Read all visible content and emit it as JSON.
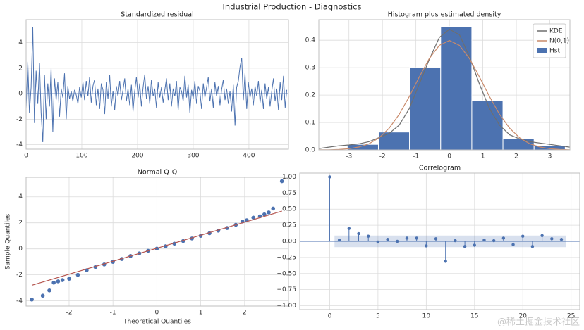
{
  "title": "Industrial Production - Diagnostics",
  "watermark": "@稀土掘金技术社区",
  "chart_data": [
    {
      "type": "line",
      "title": "Standardized residual",
      "color": "#4c72b0",
      "x": [
        0,
        3,
        6,
        9,
        12,
        15,
        18,
        21,
        24,
        27,
        30,
        33,
        36,
        39,
        42,
        45,
        48,
        51,
        54,
        57,
        60,
        63,
        66,
        69,
        72,
        75,
        78,
        81,
        84,
        87,
        90,
        93,
        96,
        99,
        102,
        105,
        108,
        111,
        114,
        117,
        120,
        123,
        126,
        129,
        132,
        135,
        138,
        141,
        144,
        147,
        150,
        153,
        156,
        159,
        162,
        165,
        168,
        171,
        174,
        177,
        180,
        183,
        186,
        189,
        192,
        195,
        198,
        201,
        204,
        207,
        210,
        213,
        216,
        219,
        222,
        225,
        228,
        231,
        234,
        237,
        240,
        243,
        246,
        249,
        252,
        255,
        258,
        261,
        264,
        267,
        270,
        273,
        276,
        279,
        282,
        285,
        288,
        291,
        294,
        297,
        300,
        303,
        306,
        309,
        312,
        315,
        318,
        321,
        324,
        327,
        330,
        333,
        336,
        339,
        342,
        345,
        348,
        351,
        354,
        357,
        360,
        363,
        366,
        369,
        372,
        375,
        378,
        381,
        384,
        387,
        390,
        393,
        396,
        399,
        402,
        405,
        408,
        411,
        414,
        417,
        420,
        423,
        426,
        429,
        432,
        435,
        438,
        441,
        444,
        447,
        450,
        453,
        456,
        459,
        462,
        465,
        468
      ],
      "values": [
        -1.2,
        2.5,
        -1.5,
        0.5,
        5.2,
        -2.3,
        1.8,
        -0.8,
        2.4,
        -1.5,
        -3.8,
        1.5,
        -2.0,
        0.8,
        -1.0,
        2.0,
        -3.0,
        1.2,
        -0.5,
        0.9,
        -1.8,
        0.4,
        -0.3,
        1.6,
        -2.0,
        0.6,
        -0.4,
        0.2,
        -0.6,
        0.3,
        -0.1,
        -0.8,
        0.5,
        -0.3,
        0.9,
        -0.5,
        1.0,
        -0.2,
        1.3,
        -0.7,
        0.6,
        1.1,
        -0.9,
        0.4,
        -1.2,
        0.8,
        0.3,
        -1.6,
        0.9,
        -0.4,
        1.5,
        -1.0,
        0.2,
        -1.3,
        0.6,
        -0.2,
        1.0,
        -0.5,
        0.3,
        1.2,
        -0.6,
        0.4,
        -0.9,
        0.7,
        -1.4,
        0.2,
        1.3,
        -0.3,
        0.8,
        -1.0,
        0.5,
        1.5,
        -0.4,
        0.6,
        -0.8,
        1.1,
        -0.2,
        0.4,
        -1.1,
        0.9,
        -0.3,
        0.5,
        -0.7,
        0.3,
        1.2,
        -0.5,
        0.8,
        -1.0,
        0.4,
        -0.2,
        1.0,
        -1.3,
        0.5,
        0.2,
        -0.6,
        1.4,
        -0.3,
        0.7,
        -1.5,
        0.3,
        -0.4,
        1.0,
        -0.8,
        0.6,
        0.2,
        -1.2,
        0.8,
        -0.3,
        0.5,
        1.3,
        -0.6,
        0.4,
        -1.1,
        0.9,
        -0.2,
        0.6,
        -0.9,
        0.3,
        1.1,
        -0.5,
        0.4,
        -0.8,
        0.2,
        -1.4,
        0.7,
        -2.5,
        0.5,
        1.0,
        2.1,
        2.8,
        -0.5,
        1.6,
        -1.2,
        0.9,
        -0.3,
        0.4,
        -0.9,
        0.6,
        -0.2,
        1.0,
        -0.7,
        0.3,
        -1.2,
        0.8,
        -0.4,
        0.5,
        -1.0,
        0.2,
        1.2,
        -0.6,
        0.4,
        -1.3,
        0.9,
        -0.5,
        1.4,
        -1.1,
        0.3
      ],
      "xlim": [
        0,
        471
      ],
      "ylim": [
        -4.35,
        5.8
      ],
      "xticks": [
        0,
        100,
        200,
        300,
        400
      ],
      "yticks": [
        -4,
        -2,
        0,
        2,
        4
      ],
      "grid": true
    },
    {
      "type": "hist",
      "title": "Histogram plus estimated density",
      "legend": "upper right",
      "series": [
        {
          "name": "KDE",
          "type": "line",
          "color": "#6e6e6e",
          "x": [
            -3.9,
            -3.6,
            -3.3,
            -3.0,
            -2.7,
            -2.4,
            -2.1,
            -1.8,
            -1.5,
            -1.2,
            -0.9,
            -0.6,
            -0.3,
            0,
            0.3,
            0.6,
            0.9,
            1.2,
            1.5,
            1.8,
            2.1,
            2.4,
            2.7,
            3.0,
            3.3,
            3.6
          ],
          "values": [
            0.005,
            0.01,
            0.015,
            0.018,
            0.022,
            0.03,
            0.045,
            0.06,
            0.09,
            0.15,
            0.24,
            0.33,
            0.41,
            0.44,
            0.42,
            0.34,
            0.24,
            0.15,
            0.09,
            0.055,
            0.04,
            0.03,
            0.025,
            0.02,
            0.015,
            0.01
          ]
        },
        {
          "name": "N(0,1)",
          "type": "line",
          "color": "#c98a6a",
          "x": [
            -3.9,
            -3.6,
            -3.3,
            -3.0,
            -2.7,
            -2.4,
            -2.1,
            -1.8,
            -1.5,
            -1.2,
            -0.9,
            -0.6,
            -0.3,
            0,
            0.3,
            0.6,
            0.9,
            1.2,
            1.5,
            1.8,
            2.1,
            2.4,
            2.7,
            3.0,
            3.3,
            3.6
          ],
          "values": [
            0.0002,
            0.0006,
            0.0017,
            0.0044,
            0.0104,
            0.0224,
            0.044,
            0.079,
            0.1295,
            0.1942,
            0.2661,
            0.3332,
            0.3814,
            0.3989,
            0.3814,
            0.3332,
            0.2661,
            0.1942,
            0.1295,
            0.079,
            0.044,
            0.0224,
            0.0104,
            0.0044,
            0.0017,
            0.0006
          ]
        },
        {
          "name": "Hst",
          "type": "hist",
          "color": "#4c72b0",
          "bins": [
            -3.05,
            -2.12,
            -1.19,
            -0.26,
            0.67,
            1.6,
            2.53,
            3.46
          ],
          "values": [
            0.02,
            0.065,
            0.3,
            0.45,
            0.18,
            0.04,
            0.015
          ]
        }
      ],
      "xlim": [
        -3.9,
        3.6
      ],
      "ylim": [
        0,
        0.475
      ],
      "xticks": [
        -3,
        -2,
        -1,
        0,
        1,
        2,
        3
      ],
      "yticks": [
        {
          "value": 0,
          "label": "0.0"
        },
        {
          "value": 0.1,
          "label": "0.1"
        },
        {
          "value": 0.2,
          "label": "0.2"
        },
        {
          "value": 0.3,
          "label": "0.3"
        },
        {
          "value": 0.4,
          "label": "0.4"
        }
      ],
      "grid": true
    },
    {
      "type": "scatter",
      "title": "Normal Q-Q",
      "x_label": "Theoretical Quantiles",
      "y_label": "Sample Quantiles",
      "points": {
        "color": "#4c72b0",
        "x": [
          -2.85,
          -2.6,
          -2.45,
          -2.35,
          -2.25,
          -2.15,
          -2.0,
          -1.8,
          -1.6,
          -1.4,
          -1.2,
          -1.0,
          -0.8,
          -0.6,
          -0.4,
          -0.2,
          0,
          0.2,
          0.4,
          0.6,
          0.8,
          1.0,
          1.2,
          1.4,
          1.6,
          1.8,
          1.95,
          2.05,
          2.2,
          2.35,
          2.45,
          2.55,
          2.65,
          2.85
        ],
        "values": [
          -3.9,
          -3.6,
          -3.2,
          -2.6,
          -2.5,
          -2.4,
          -2.3,
          -2.0,
          -1.65,
          -1.4,
          -1.2,
          -1.0,
          -0.78,
          -0.55,
          -0.35,
          -0.15,
          0.02,
          0.2,
          0.4,
          0.6,
          0.8,
          1.0,
          1.2,
          1.4,
          1.6,
          1.85,
          2.1,
          2.2,
          2.4,
          2.5,
          2.65,
          2.8,
          3.1,
          5.2
        ]
      },
      "reference_line": {
        "color": "#b5554f",
        "x": [
          -2.85,
          2.85
        ],
        "values": [
          -2.8,
          2.9
        ]
      },
      "xlim": [
        -2.98,
        3.0
      ],
      "ylim": [
        -4.4,
        5.5
      ],
      "xticks": [
        -2,
        -1,
        0,
        1,
        2
      ],
      "yticks": [
        -4,
        -2,
        0,
        2,
        4
      ],
      "grid": true
    },
    {
      "type": "stem",
      "title": "Correlogram",
      "color": "#4c72b0",
      "x": [
        0,
        1,
        2,
        3,
        4,
        5,
        6,
        7,
        8,
        9,
        10,
        11,
        12,
        13,
        14,
        15,
        16,
        17,
        18,
        19,
        20,
        21,
        22,
        23,
        24
      ],
      "values": [
        1.0,
        0.02,
        0.2,
        0.12,
        0.08,
        -0.01,
        0.03,
        0.0,
        0.05,
        0.05,
        -0.07,
        0.04,
        -0.31,
        0.01,
        -0.08,
        -0.06,
        0.02,
        0.01,
        0.05,
        -0.05,
        0.08,
        -0.08,
        0.09,
        0.04,
        0.03
      ],
      "confint": [
        -0.09,
        0.09
      ],
      "xlim": [
        -3.1,
        25.9
      ],
      "ylim": [
        -1.06,
        1.06
      ],
      "xticks": [
        0,
        5,
        10,
        15,
        20,
        25
      ],
      "yticks": [
        {
          "value": -1,
          "label": "−1.00"
        },
        {
          "value": -0.75,
          "label": "−0.75"
        },
        {
          "value": -0.5,
          "label": "−0.50"
        },
        {
          "value": -0.25,
          "label": "−0.25"
        },
        {
          "value": 0,
          "label": "0.00"
        },
        {
          "value": 0.25,
          "label": "0.25"
        },
        {
          "value": 0.5,
          "label": "0.50"
        },
        {
          "value": 0.75,
          "label": "0.75"
        },
        {
          "value": 1,
          "label": "1.00"
        }
      ],
      "grid": true
    }
  ]
}
